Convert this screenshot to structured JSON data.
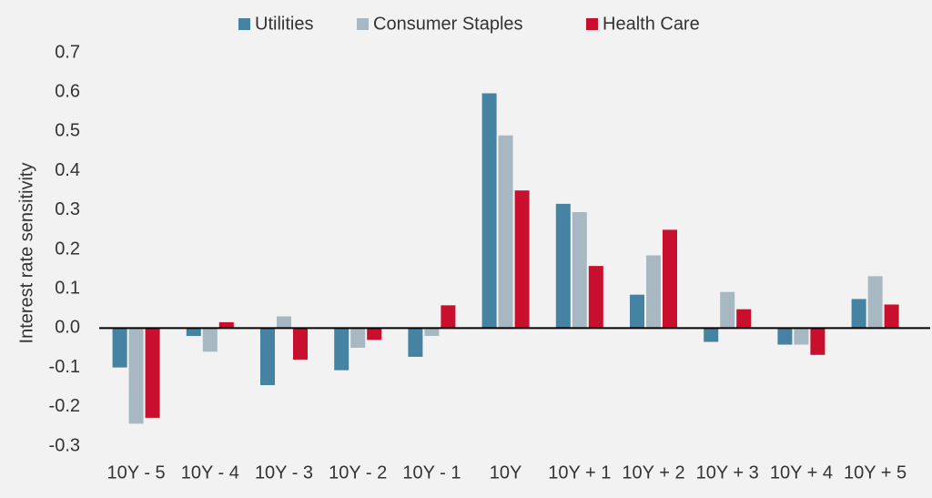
{
  "chart_data": {
    "type": "bar",
    "y_label": "Interest rate sensitivity",
    "categories": [
      "10Y - 5",
      "10Y - 4",
      "10Y - 3",
      "10Y - 2",
      "10Y - 1",
      "10Y",
      "10Y + 1",
      "10Y + 2",
      "10Y + 3",
      "10Y + 4",
      "10Y + 5"
    ],
    "series": [
      {
        "name": "Utilities",
        "color": "#4683a3",
        "values": [
          -0.1,
          -0.02,
          -0.145,
          -0.107,
          -0.073,
          0.597,
          0.316,
          0.085,
          -0.035,
          -0.042,
          0.074
        ]
      },
      {
        "name": "Consumer Staples",
        "color": "#a8b8c3",
        "values": [
          -0.243,
          -0.06,
          0.03,
          -0.05,
          -0.02,
          0.49,
          0.295,
          0.185,
          0.092,
          -0.042,
          0.132
        ]
      },
      {
        "name": "Health Care",
        "color": "#c8102e",
        "values": [
          -0.228,
          0.015,
          -0.08,
          -0.03,
          0.058,
          0.35,
          0.158,
          0.25,
          0.048,
          -0.068,
          0.06
        ]
      }
    ],
    "ylim": [
      -0.3,
      0.7
    ],
    "yticks": [
      -0.3,
      -0.2,
      -0.1,
      {
        "value": 0,
        "label": "0.0"
      },
      0.1,
      0.2,
      0.3,
      0.4,
      0.5,
      0.6,
      0.7
    ],
    "grid": false,
    "legend": "top"
  }
}
